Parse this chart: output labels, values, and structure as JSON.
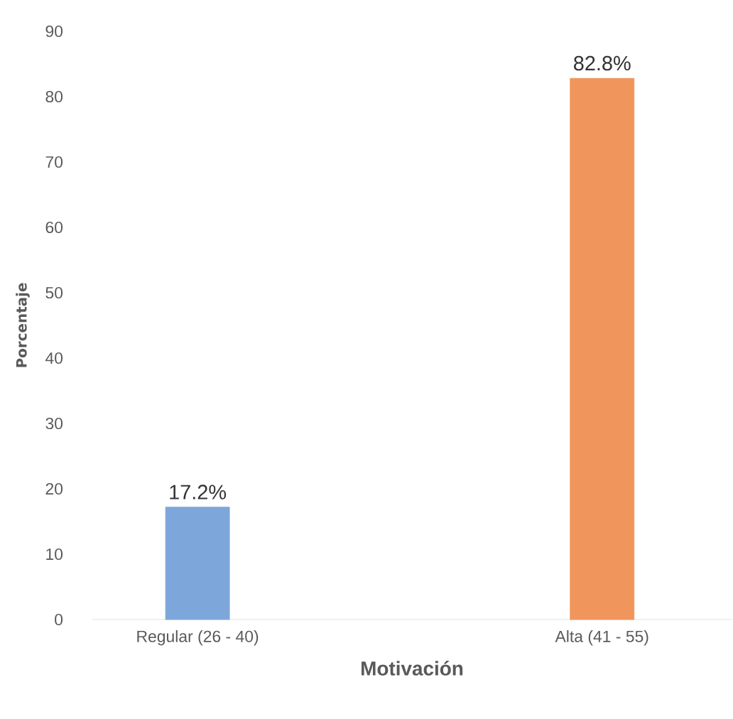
{
  "chart_data": {
    "type": "bar",
    "xlabel": "Motivación",
    "ylabel": "Porcentaje",
    "categories": [
      "Regular (26 - 40)",
      "Alta (41 - 55)"
    ],
    "values": [
      17.2,
      82.8
    ],
    "colors": [
      "#7da7db",
      "#f0955c"
    ],
    "value_labels": [
      "17.2%",
      "82.8%"
    ],
    "ylim": [
      0,
      90
    ],
    "yticks": [
      0,
      10,
      20,
      30,
      40,
      50,
      60,
      70,
      80,
      90
    ]
  }
}
